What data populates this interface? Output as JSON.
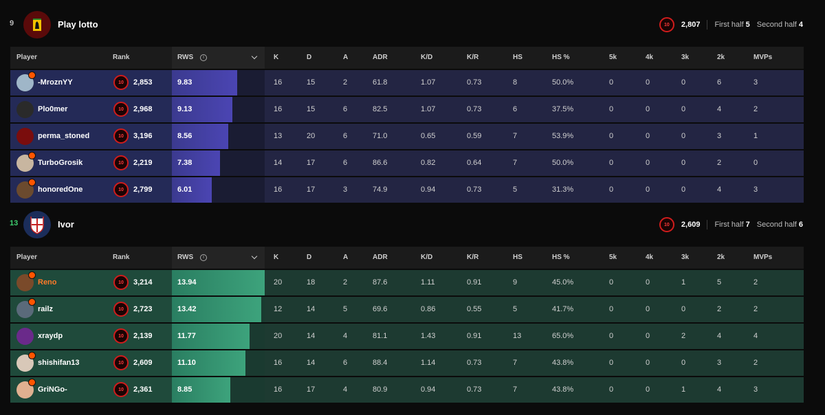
{
  "columns": {
    "player": "Player",
    "rank": "Rank",
    "rws": "RWS",
    "k": "K",
    "d": "D",
    "a": "A",
    "adr": "ADR",
    "kd": "K/D",
    "kr": "K/R",
    "hs": "HS",
    "hsp": "HS %",
    "k5": "5k",
    "k4": "4k",
    "k3": "3k",
    "k2": "2k",
    "mvps": "MVPs"
  },
  "info_glyph": "i",
  "level_label": "10",
  "colors": {
    "team1_row": "#232543",
    "team1_bar": "#4b45b3",
    "team2_row": "#1d3a31",
    "team2_bar": "#3da37c",
    "level_ring": "#d01c1c",
    "winner_score": "#3ecf6f",
    "highlight_name": "#ff7a29"
  },
  "teams": [
    {
      "score": "9",
      "name": "Play lotto",
      "elo": "2,807",
      "winner": false,
      "first_half_label": "First half",
      "first_half": "5",
      "second_half_label": "Second half",
      "second_half": "4",
      "logo_icon": "ferrari-logo-icon",
      "players": [
        {
          "name": "-MroznYY",
          "rank": "2,853",
          "rws": "9.83",
          "rws_fraction": 0.7,
          "k": "16",
          "d": "15",
          "a": "2",
          "adr": "61.8",
          "kd": "1.07",
          "kr": "0.73",
          "hs": "8",
          "hsp": "50.0%",
          "k5": "0",
          "k4": "0",
          "k3": "0",
          "k2": "6",
          "mvps": "3",
          "avatar_color": "#9fb6c8",
          "badge": true,
          "highlight": false
        },
        {
          "name": "Plo0mer",
          "rank": "2,968",
          "rws": "9.13",
          "rws_fraction": 0.65,
          "k": "16",
          "d": "15",
          "a": "6",
          "adr": "82.5",
          "kd": "1.07",
          "kr": "0.73",
          "hs": "6",
          "hsp": "37.5%",
          "k5": "0",
          "k4": "0",
          "k3": "0",
          "k2": "4",
          "mvps": "2",
          "avatar_color": "#2a2a2a",
          "badge": false,
          "highlight": false
        },
        {
          "name": "perma_stoned",
          "rank": "3,196",
          "rws": "8.56",
          "rws_fraction": 0.61,
          "k": "13",
          "d": "20",
          "a": "6",
          "adr": "71.0",
          "kd": "0.65",
          "kr": "0.59",
          "hs": "7",
          "hsp": "53.9%",
          "k5": "0",
          "k4": "0",
          "k3": "0",
          "k2": "3",
          "mvps": "1",
          "avatar_color": "#7a0d0d",
          "badge": false,
          "highlight": false
        },
        {
          "name": "TurboGrosik",
          "rank": "2,219",
          "rws": "7.38",
          "rws_fraction": 0.52,
          "k": "14",
          "d": "17",
          "a": "6",
          "adr": "86.6",
          "kd": "0.82",
          "kr": "0.64",
          "hs": "7",
          "hsp": "50.0%",
          "k5": "0",
          "k4": "0",
          "k3": "0",
          "k2": "2",
          "mvps": "0",
          "avatar_color": "#c8b6a0",
          "badge": true,
          "highlight": false
        },
        {
          "name": "honoredOne",
          "rank": "2,799",
          "rws": "6.01",
          "rws_fraction": 0.43,
          "k": "16",
          "d": "17",
          "a": "3",
          "adr": "74.9",
          "kd": "0.94",
          "kr": "0.73",
          "hs": "5",
          "hsp": "31.3%",
          "k5": "0",
          "k4": "0",
          "k3": "0",
          "k2": "4",
          "mvps": "3",
          "avatar_color": "#6b4a2e",
          "badge": true,
          "highlight": false
        }
      ]
    },
    {
      "score": "13",
      "name": "Ivor",
      "elo": "2,609",
      "winner": true,
      "first_half_label": "First half",
      "first_half": "7",
      "second_half_label": "Second half",
      "second_half": "6",
      "logo_icon": "ivor-crest-logo-icon",
      "players": [
        {
          "name": "Reno",
          "rank": "3,214",
          "rws": "13.94",
          "rws_fraction": 1.0,
          "k": "20",
          "d": "18",
          "a": "2",
          "adr": "87.6",
          "kd": "1.11",
          "kr": "0.91",
          "hs": "9",
          "hsp": "45.0%",
          "k5": "0",
          "k4": "0",
          "k3": "1",
          "k2": "5",
          "mvps": "2",
          "avatar_color": "#7a4a2a",
          "badge": true,
          "highlight": true
        },
        {
          "name": "railz",
          "rank": "2,723",
          "rws": "13.42",
          "rws_fraction": 0.96,
          "k": "12",
          "d": "14",
          "a": "5",
          "adr": "69.6",
          "kd": "0.86",
          "kr": "0.55",
          "hs": "5",
          "hsp": "41.7%",
          "k5": "0",
          "k4": "0",
          "k3": "0",
          "k2": "2",
          "mvps": "2",
          "avatar_color": "#5a6a7a",
          "badge": true,
          "highlight": false
        },
        {
          "name": "xraydp",
          "rank": "2,139",
          "rws": "11.77",
          "rws_fraction": 0.84,
          "k": "20",
          "d": "14",
          "a": "4",
          "adr": "81.1",
          "kd": "1.43",
          "kr": "0.91",
          "hs": "13",
          "hsp": "65.0%",
          "k5": "0",
          "k4": "0",
          "k3": "2",
          "k2": "4",
          "mvps": "4",
          "avatar_color": "#6a2a8a",
          "badge": false,
          "highlight": false
        },
        {
          "name": "shishifan13",
          "rank": "2,609",
          "rws": "11.10",
          "rws_fraction": 0.79,
          "k": "16",
          "d": "14",
          "a": "6",
          "adr": "88.4",
          "kd": "1.14",
          "kr": "0.73",
          "hs": "7",
          "hsp": "43.8%",
          "k5": "0",
          "k4": "0",
          "k3": "0",
          "k2": "3",
          "mvps": "2",
          "avatar_color": "#d8c8b8",
          "badge": true,
          "highlight": false
        },
        {
          "name": "GriNGo-",
          "rank": "2,361",
          "rws": "8.85",
          "rws_fraction": 0.63,
          "k": "16",
          "d": "17",
          "a": "4",
          "adr": "80.9",
          "kd": "0.94",
          "kr": "0.73",
          "hs": "7",
          "hsp": "43.8%",
          "k5": "0",
          "k4": "0",
          "k3": "1",
          "k2": "4",
          "mvps": "3",
          "avatar_color": "#e0b090",
          "badge": true,
          "highlight": false
        }
      ]
    }
  ]
}
